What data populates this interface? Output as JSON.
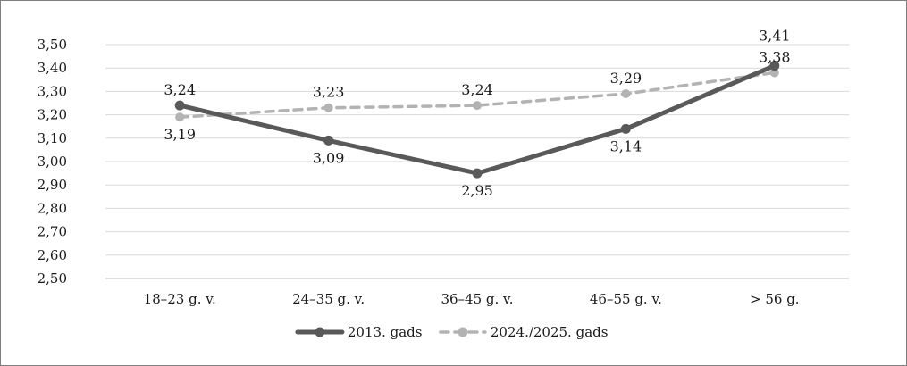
{
  "chart_data": {
    "type": "line",
    "categories": [
      "18–23 g. v.",
      "24–35 g. v.",
      "36–45 g. v.",
      "46–55 g. v.",
      "> 56 g."
    ],
    "series": [
      {
        "name": "2013. gads",
        "values": [
          3.24,
          3.09,
          2.95,
          3.14,
          3.41
        ],
        "labels": [
          "3,24",
          "3,09",
          "2,95",
          "3,14",
          "3,41"
        ],
        "color": "#595959",
        "style": "solid"
      },
      {
        "name": "2024./2025. gads",
        "values": [
          3.19,
          3.23,
          3.24,
          3.29,
          3.38
        ],
        "labels": [
          "3,19",
          "3,23",
          "3,24",
          "3,29",
          "3,38"
        ],
        "color": "#b3b3b3",
        "style": "dashed"
      }
    ],
    "title": "",
    "xlabel": "",
    "ylabel": "",
    "ylim": [
      2.5,
      3.5
    ],
    "y_ticks": [
      "2,50",
      "2,60",
      "2,70",
      "2,80",
      "2,90",
      "3,00",
      "3,10",
      "3,20",
      "3,30",
      "3,40",
      "3,50"
    ],
    "grid": true,
    "legend_position": "bottom"
  }
}
